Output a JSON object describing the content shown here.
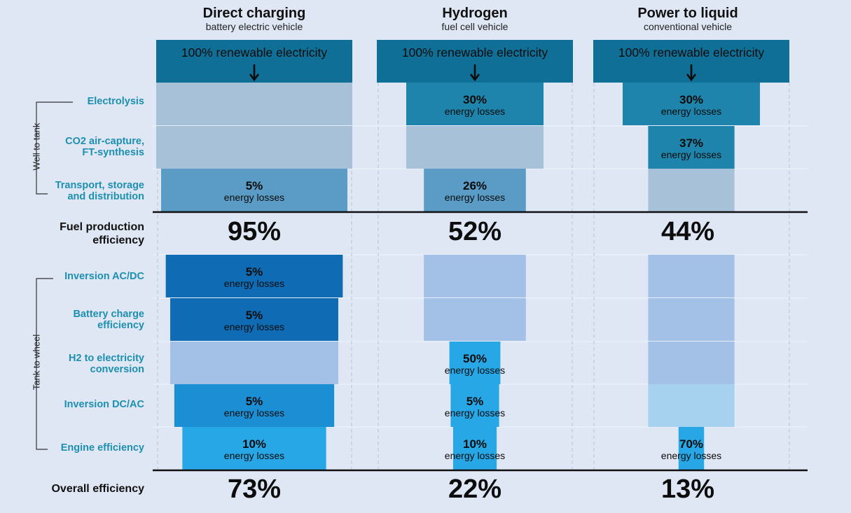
{
  "columns": [
    {
      "title": "Direct charging",
      "subtitle": "battery electric vehicle",
      "top_label": "100% renewable electricity"
    },
    {
      "title": "Hydrogen",
      "subtitle": "fuel cell vehicle",
      "top_label": "100% renewable electricity"
    },
    {
      "title": "Power to liquid",
      "subtitle": "conventional vehicle",
      "top_label": "100% renewable electricity"
    }
  ],
  "group_labels": {
    "well_to_tank": "Well to tank",
    "tank_to_wheel": "Tank to wheel"
  },
  "row_labels": {
    "electrolysis": "Electrolysis",
    "co2_line1": "CO2 air-capture,",
    "co2_line2": "FT-synthesis",
    "transport_line1": "Transport, storage",
    "transport_line2": "and distribution",
    "fuel_line1": "Fuel production",
    "fuel_line2": "efficiency",
    "inversion_acdc": "Inversion AC/DC",
    "battery_line1": "Battery charge",
    "battery_line2": "efficiency",
    "h2_line1": "H2 to electricity",
    "h2_line2": "conversion",
    "inversion_dcac": "Inversion DC/AC",
    "engine": "Engine efficiency",
    "overall": "Overall efficiency"
  },
  "loss_caption": "energy losses",
  "fuel_production_efficiency": [
    "95%",
    "52%",
    "44%"
  ],
  "overall_efficiency": [
    "73%",
    "22%",
    "13%"
  ],
  "colors": {
    "background": "#dfe7f4",
    "top_block": "#106f96",
    "wtt_loss": "#1f84ab",
    "wtt_transport_loss": "#5a9cc6",
    "wtt_passive": "#a7c1d9",
    "ttw_loss_dark": "#0f6cb4",
    "ttw_loss_mid": "#1c8fd4",
    "ttw_loss_light": "#27a7e6",
    "ttw_passive": "#a3c1e6",
    "ttw_passive_light": "#a7d2ef",
    "row_label": "#1d8fb0"
  },
  "chart_data": {
    "type": "table",
    "title": "",
    "stages": [
      "Electrolysis",
      "CO2 air-capture, FT-synthesis",
      "Transport, storage and distribution",
      "Fuel production efficiency",
      "Inversion AC/DC",
      "Battery charge efficiency",
      "H2 to electricity conversion",
      "Inversion DC/AC",
      "Engine efficiency",
      "Overall efficiency"
    ],
    "series": [
      {
        "name": "Direct charging",
        "losses": {
          "Transport, storage and distribution": "5%",
          "Inversion AC/DC": "5%",
          "Battery charge efficiency": "5%",
          "Inversion DC/AC": "5%",
          "Engine efficiency": "10%"
        },
        "fuel_production_efficiency": 95,
        "overall_efficiency": 73
      },
      {
        "name": "Hydrogen",
        "losses": {
          "Electrolysis": "30%",
          "Transport, storage and distribution": "26%",
          "H2 to electricity conversion": "50%",
          "Inversion DC/AC": "5%",
          "Engine efficiency": "10%"
        },
        "fuel_production_efficiency": 52,
        "overall_efficiency": 22
      },
      {
        "name": "Power to liquid",
        "losses": {
          "Electrolysis": "30%",
          "CO2 air-capture, FT-synthesis": "37%",
          "Engine efficiency": "70%"
        },
        "fuel_production_efficiency": 44,
        "overall_efficiency": 13
      }
    ],
    "blocks": [
      [
        {
          "row": 0,
          "fill": "wtt_passive",
          "width": 1.0,
          "loss": ""
        },
        {
          "row": 1,
          "fill": "wtt_passive",
          "width": 1.0,
          "loss": ""
        },
        {
          "row": 2,
          "fill": "wtt_transport_loss",
          "width": 0.95,
          "loss": "5%"
        },
        {
          "row": 4,
          "fill": "ttw_loss_dark",
          "width": 0.9025,
          "loss": "5%"
        },
        {
          "row": 5,
          "fill": "ttw_loss_dark",
          "width": 0.857,
          "loss": "5%"
        },
        {
          "row": 6,
          "fill": "ttw_passive",
          "width": 0.857,
          "loss": ""
        },
        {
          "row": 7,
          "fill": "ttw_loss_mid",
          "width": 0.815,
          "loss": "5%"
        },
        {
          "row": 8,
          "fill": "ttw_loss_light",
          "width": 0.733,
          "loss": "10%"
        }
      ],
      [
        {
          "row": 0,
          "fill": "wtt_loss",
          "width": 0.7,
          "loss": "30%"
        },
        {
          "row": 1,
          "fill": "wtt_passive",
          "width": 0.7,
          "loss": ""
        },
        {
          "row": 2,
          "fill": "wtt_transport_loss",
          "width": 0.52,
          "loss": "26%"
        },
        {
          "row": 4,
          "fill": "ttw_passive",
          "width": 0.52,
          "loss": ""
        },
        {
          "row": 5,
          "fill": "ttw_passive",
          "width": 0.52,
          "loss": ""
        },
        {
          "row": 6,
          "fill": "ttw_loss_light",
          "width": 0.26,
          "loss": "50%"
        },
        {
          "row": 7,
          "fill": "ttw_loss_light",
          "width": 0.247,
          "loss": "5%"
        },
        {
          "row": 8,
          "fill": "ttw_loss_light",
          "width": 0.222,
          "loss": "10%"
        }
      ],
      [
        {
          "row": 0,
          "fill": "wtt_loss",
          "width": 0.7,
          "loss": "30%"
        },
        {
          "row": 1,
          "fill": "wtt_loss",
          "width": 0.44,
          "loss": "37%"
        },
        {
          "row": 2,
          "fill": "wtt_passive",
          "width": 0.44,
          "loss": ""
        },
        {
          "row": 4,
          "fill": "ttw_passive",
          "width": 0.44,
          "loss": ""
        },
        {
          "row": 5,
          "fill": "ttw_passive",
          "width": 0.44,
          "loss": ""
        },
        {
          "row": 6,
          "fill": "ttw_passive",
          "width": 0.44,
          "loss": ""
        },
        {
          "row": 7,
          "fill": "ttw_passive_light",
          "width": 0.44,
          "loss": ""
        },
        {
          "row": 8,
          "fill": "ttw_loss_light",
          "width": 0.13,
          "loss": "70%"
        }
      ]
    ]
  }
}
